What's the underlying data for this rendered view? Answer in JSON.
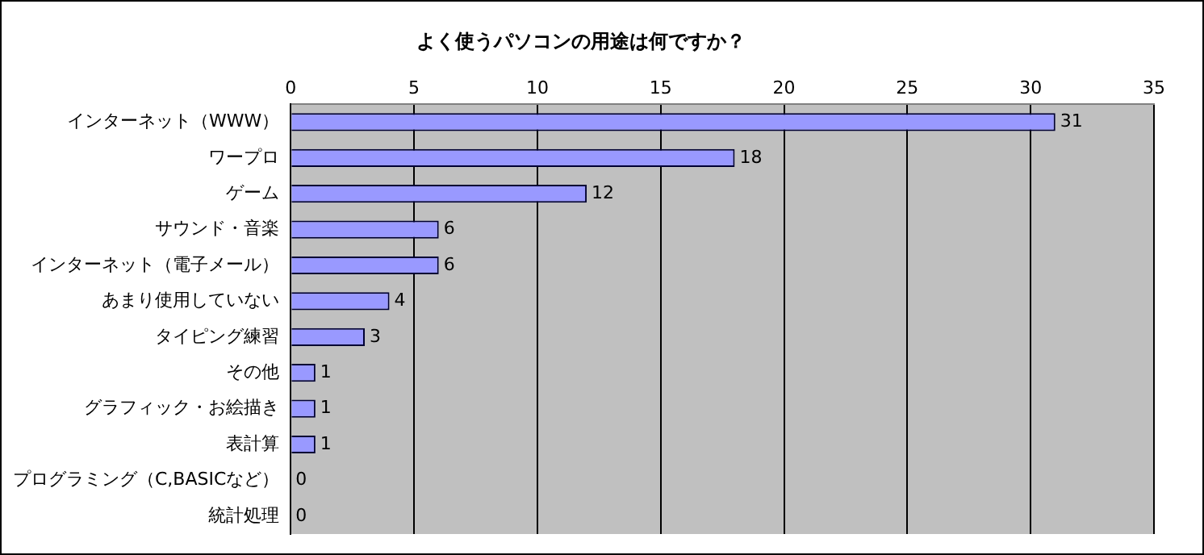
{
  "chart_data": {
    "type": "bar",
    "orientation": "horizontal",
    "title": "よく使うパソコンの用途は何ですか？",
    "categories": [
      "インターネット（WWW）",
      "ワープロ",
      "ゲーム",
      "サウンド・音楽",
      "インターネット（電子メール）",
      "あまり使用していない",
      "タイピング練習",
      "その他",
      "グラフィック・お絵描き",
      "表計算",
      "プログラミング（C,BASICなど）",
      "統計処理"
    ],
    "values": [
      31,
      18,
      12,
      6,
      6,
      4,
      3,
      1,
      1,
      1,
      0,
      0
    ],
    "color": "#9999ff",
    "xlim": [
      0,
      35
    ],
    "xticks": [
      0,
      5,
      10,
      15,
      20,
      25,
      30,
      35
    ],
    "grid": "x",
    "data_labels": true,
    "legend": false
  }
}
